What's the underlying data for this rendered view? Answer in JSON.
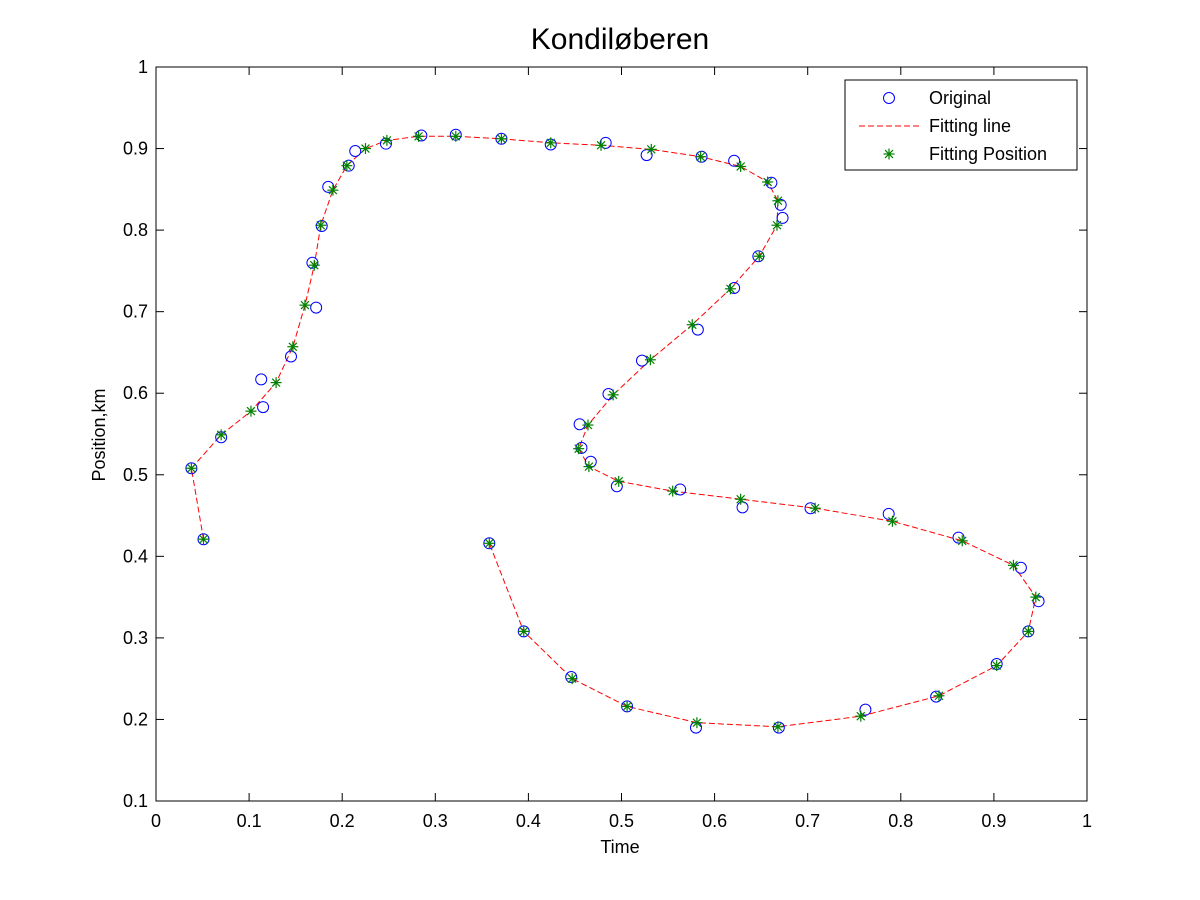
{
  "chart_data": {
    "type": "line",
    "title": "Kondiløberen",
    "xlabel": "Time",
    "ylabel": "Position,km",
    "xlim": [
      0,
      1
    ],
    "ylim": [
      0.1,
      1
    ],
    "xticks": [
      "0",
      "0.1",
      "0.2",
      "0.3",
      "0.4",
      "0.5",
      "0.6",
      "0.7",
      "0.8",
      "0.9",
      "1"
    ],
    "yticks": [
      "0.1",
      "0.2",
      "0.3",
      "0.4",
      "0.5",
      "0.6",
      "0.7",
      "0.8",
      "0.9",
      "1"
    ],
    "grid": false,
    "legend_position": "top-right",
    "colors": {
      "original": "#0000ff",
      "fitting_line": "#ff0000",
      "fitting_position": "#008000"
    },
    "series": [
      {
        "name": "Original",
        "marker": "circle",
        "x": [
          0.051,
          0.038,
          0.07,
          0.115,
          0.113,
          0.145,
          0.172,
          0.168,
          0.178,
          0.185,
          0.207,
          0.214,
          0.247,
          0.285,
          0.322,
          0.371,
          0.424,
          0.483,
          0.527,
          0.586,
          0.621,
          0.661,
          0.671,
          0.673,
          0.647,
          0.621,
          0.582,
          0.522,
          0.486,
          0.455,
          0.457,
          0.467,
          0.495,
          0.563,
          0.63,
          0.703,
          0.787,
          0.862,
          0.929,
          0.948,
          0.937,
          0.903,
          0.838,
          0.762,
          0.669,
          0.58,
          0.506,
          0.446,
          0.395,
          0.358
        ],
        "y": [
          0.421,
          0.508,
          0.546,
          0.583,
          0.617,
          0.645,
          0.705,
          0.76,
          0.805,
          0.853,
          0.879,
          0.897,
          0.906,
          0.916,
          0.917,
          0.912,
          0.905,
          0.907,
          0.892,
          0.89,
          0.885,
          0.858,
          0.831,
          0.815,
          0.768,
          0.729,
          0.678,
          0.64,
          0.599,
          0.562,
          0.533,
          0.516,
          0.486,
          0.482,
          0.46,
          0.459,
          0.452,
          0.423,
          0.386,
          0.345,
          0.308,
          0.268,
          0.228,
          0.212,
          0.19,
          0.19,
          0.216,
          0.252,
          0.308,
          0.416
        ]
      },
      {
        "name": "Fitting line",
        "marker": "dashed-line",
        "x": [
          0.051,
          0.038,
          0.07,
          0.102,
          0.129,
          0.147,
          0.16,
          0.17,
          0.177,
          0.19,
          0.205,
          0.225,
          0.248,
          0.282,
          0.322,
          0.371,
          0.424,
          0.478,
          0.532,
          0.585,
          0.628,
          0.657,
          0.668,
          0.667,
          0.648,
          0.617,
          0.576,
          0.531,
          0.491,
          0.464,
          0.454,
          0.465,
          0.497,
          0.555,
          0.628,
          0.708,
          0.791,
          0.866,
          0.921,
          0.945,
          0.937,
          0.903,
          0.841,
          0.757,
          0.668,
          0.581,
          0.506,
          0.447,
          0.395,
          0.358
        ],
        "y": [
          0.421,
          0.508,
          0.549,
          0.578,
          0.613,
          0.657,
          0.708,
          0.757,
          0.806,
          0.849,
          0.879,
          0.9,
          0.91,
          0.915,
          0.915,
          0.912,
          0.907,
          0.904,
          0.899,
          0.89,
          0.878,
          0.859,
          0.836,
          0.806,
          0.768,
          0.728,
          0.684,
          0.641,
          0.598,
          0.561,
          0.532,
          0.51,
          0.492,
          0.48,
          0.47,
          0.459,
          0.443,
          0.419,
          0.389,
          0.35,
          0.308,
          0.266,
          0.229,
          0.204,
          0.191,
          0.196,
          0.216,
          0.25,
          0.308,
          0.416
        ]
      },
      {
        "name": "Fitting Position",
        "marker": "asterisk",
        "x": [
          0.051,
          0.038,
          0.07,
          0.102,
          0.129,
          0.147,
          0.16,
          0.17,
          0.177,
          0.19,
          0.205,
          0.225,
          0.248,
          0.282,
          0.322,
          0.371,
          0.424,
          0.478,
          0.532,
          0.585,
          0.628,
          0.657,
          0.668,
          0.667,
          0.648,
          0.617,
          0.576,
          0.531,
          0.491,
          0.464,
          0.454,
          0.465,
          0.497,
          0.555,
          0.628,
          0.708,
          0.791,
          0.866,
          0.921,
          0.945,
          0.937,
          0.903,
          0.841,
          0.757,
          0.668,
          0.581,
          0.506,
          0.447,
          0.395,
          0.358
        ],
        "y": [
          0.421,
          0.508,
          0.549,
          0.578,
          0.613,
          0.657,
          0.708,
          0.757,
          0.806,
          0.849,
          0.879,
          0.9,
          0.91,
          0.915,
          0.915,
          0.912,
          0.907,
          0.904,
          0.899,
          0.89,
          0.878,
          0.859,
          0.836,
          0.806,
          0.768,
          0.728,
          0.684,
          0.641,
          0.598,
          0.561,
          0.532,
          0.51,
          0.492,
          0.48,
          0.47,
          0.459,
          0.443,
          0.419,
          0.389,
          0.35,
          0.308,
          0.266,
          0.229,
          0.204,
          0.191,
          0.196,
          0.216,
          0.25,
          0.308,
          0.416
        ]
      }
    ]
  }
}
